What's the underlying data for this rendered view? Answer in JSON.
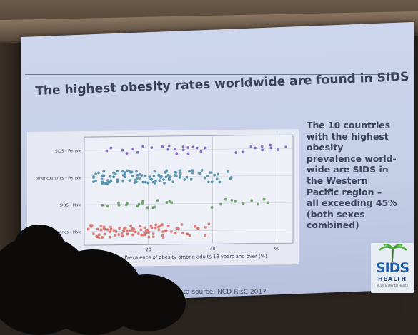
{
  "slide": {
    "title": "The highest obesity rates worldwide are found in SIDS",
    "side_text_lines": [
      "The 10 countries",
      "with the highest",
      "obesity",
      "prevalence world-",
      "wide are SIDS in",
      "the Western",
      "Pacific region –",
      "all exceeding 45%",
      "(both sexes",
      "combined)"
    ],
    "source": "Data source: NCD-RisC 2017"
  },
  "logo": {
    "word": "SIDS",
    "sub": "HEALTH",
    "tiny": "NCDs & Mental Health"
  },
  "chart_data": {
    "type": "scatter",
    "title": "",
    "xlabel": "Prevalence of obesity among adults 18 years and over (%)",
    "ylabel": "",
    "xlim": [
      0,
      65
    ],
    "x_ticks": [
      20,
      40,
      60
    ],
    "categories": [
      "SIDS – Female",
      "other countries – Female",
      "SIDS – Male",
      "other countries – Male"
    ],
    "colors": [
      "#7b5fc0",
      "#4f8fa8",
      "#5f9a5a",
      "#d8706a"
    ],
    "grid": true,
    "series": [
      {
        "name": "SIDS – Female",
        "values": [
          7,
          9,
          12,
          14,
          15,
          17,
          18,
          21,
          24,
          26,
          27,
          28,
          29,
          30,
          31,
          32,
          33,
          34,
          35,
          37,
          38,
          48,
          50,
          52,
          53,
          55,
          56,
          58,
          59,
          60,
          62
        ]
      },
      {
        "name": "other countries – Female",
        "values": [
          3,
          4,
          5,
          6,
          7,
          8,
          9,
          10,
          11,
          12,
          13,
          14,
          15,
          16,
          17,
          18,
          19,
          20,
          21,
          22,
          23,
          24,
          25,
          26,
          27,
          28,
          29,
          30,
          32,
          34,
          36,
          38,
          40,
          42,
          45
        ]
      },
      {
        "name": "SIDS – Male",
        "values": [
          6,
          8,
          10,
          11,
          13,
          14,
          16,
          17,
          18,
          19,
          20,
          21,
          22,
          23,
          25,
          27,
          28,
          40,
          42,
          44,
          46,
          47,
          50,
          52,
          54,
          56,
          58
        ]
      },
      {
        "name": "other countries – Male",
        "values": [
          2,
          3,
          4,
          5,
          6,
          7,
          8,
          9,
          10,
          11,
          12,
          13,
          14,
          15,
          16,
          17,
          18,
          19,
          20,
          21,
          22,
          23,
          24,
          25,
          26,
          28,
          30,
          32,
          35,
          38
        ]
      }
    ]
  }
}
